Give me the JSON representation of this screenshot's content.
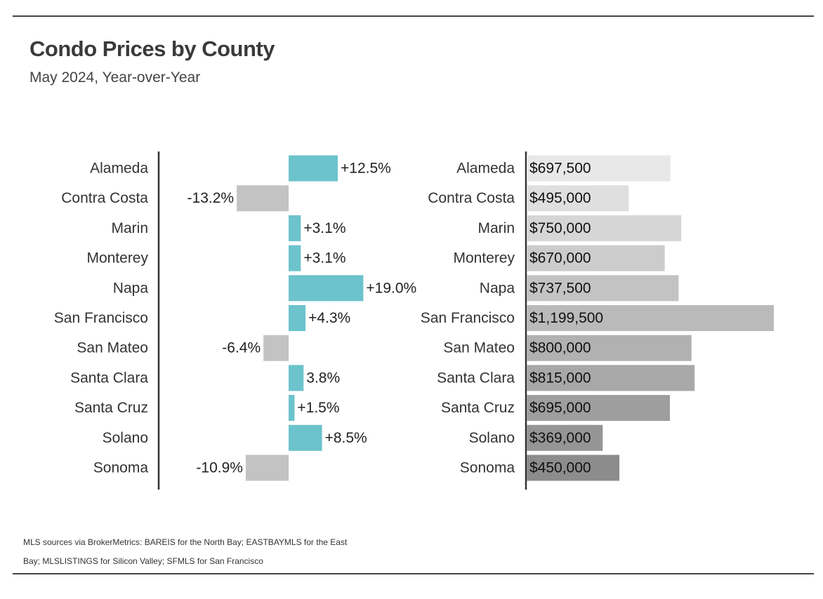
{
  "title": "Condo Prices by County",
  "subtitle": "May 2024, Year-over-Year",
  "source_lines": [
    "MLS sources via BrokerMetrics: BAREIS for the North Bay; EASTBAYMLS for the East",
    "Bay; MLSLISTINGS for Silicon Valley; SFMLS for San Francisco"
  ],
  "colors": {
    "positive": "#6cc3cc",
    "negative": "#c3c3c3",
    "price_light": "#e8e8e8",
    "price_dark": "#8c8c8c",
    "axis": "#333333"
  },
  "chart_data": [
    {
      "type": "bar",
      "orientation": "horizontal",
      "categories": [
        "Alameda",
        "Contra Costa",
        "Marin",
        "Monterey",
        "Napa",
        "San Francisco",
        "San Mateo",
        "Santa Clara",
        "Santa Cruz",
        "Solano",
        "Sonoma"
      ],
      "values": [
        12.5,
        -13.2,
        3.1,
        3.1,
        19.0,
        4.3,
        -6.4,
        3.8,
        1.5,
        8.5,
        -10.9
      ],
      "labels": [
        "+12.5%",
        "-13.2%",
        "+3.1%",
        "+3.1%",
        "+19.0%",
        "+4.3%",
        "-6.4%",
        "3.8%",
        "+1.5%",
        "+8.5%",
        "-10.9%"
      ],
      "xlim": [
        -13.2,
        19.0
      ],
      "grid": false,
      "legend": false
    },
    {
      "type": "bar",
      "orientation": "horizontal",
      "categories": [
        "Alameda",
        "Contra Costa",
        "Marin",
        "Monterey",
        "Napa",
        "San Francisco",
        "San Mateo",
        "Santa Clara",
        "Santa Cruz",
        "Solano",
        "Sonoma"
      ],
      "values": [
        697500,
        495000,
        750000,
        670000,
        737500,
        1199500,
        800000,
        815000,
        695000,
        369000,
        450000
      ],
      "labels": [
        "$697,500",
        "$495,000",
        "$750,000",
        "$670,000",
        "$737,500",
        "$1,199,500",
        "$800,000",
        "$815,000",
        "$695,000",
        "$369,000",
        "$450,000"
      ],
      "xlim": [
        0,
        1199500
      ],
      "grid": false,
      "legend": false
    }
  ]
}
